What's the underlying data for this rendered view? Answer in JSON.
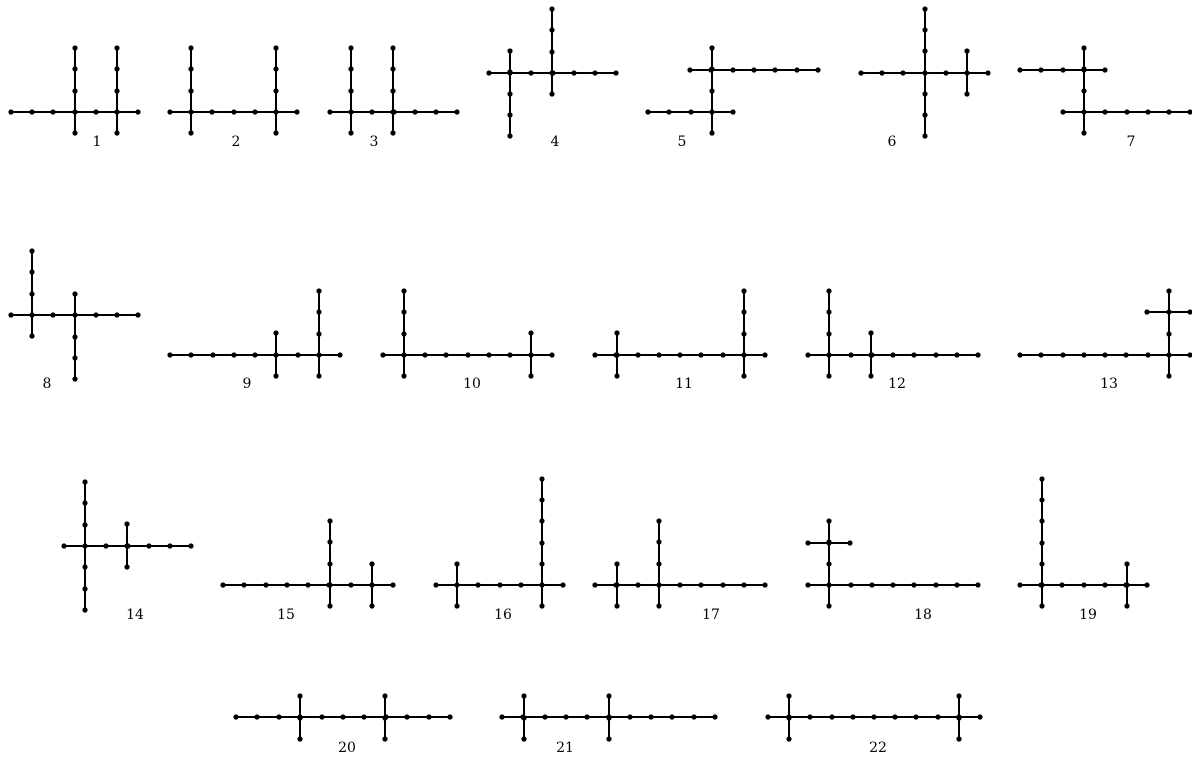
{
  "figure": {
    "labels": [
      "1",
      "2",
      "3",
      "4",
      "5",
      "6",
      "7",
      "8",
      "9",
      "10",
      "11",
      "12",
      "13",
      "14",
      "15",
      "16",
      "17",
      "18",
      "19",
      "20",
      "21",
      "22"
    ]
  }
}
